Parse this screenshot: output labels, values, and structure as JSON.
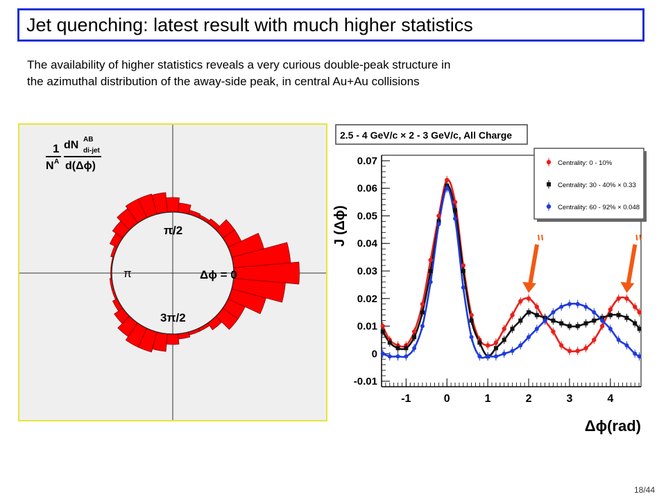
{
  "slide": {
    "title": "Jet quenching: latest result with much higher statistics",
    "intro_line1": "The availability of higher statistics reveals a very curious double-peak structure in",
    "intro_line2": "the azimuthal distribution of the away-side peak, in central Au+Au collisions",
    "page_number": "18/44"
  },
  "polar": {
    "axis_label_num1": "1",
    "axis_label_num2": "dN",
    "axis_label_sup": "AB",
    "axis_label_sub": "di-jet",
    "axis_label_den1": "N",
    "axis_label_den1_sup": "A",
    "axis_label_den2": "d(Δϕ)",
    "label_pi_half": "π/2",
    "label_pi": "π",
    "label_three_pi_half": "3π/2",
    "label_zero": "Δϕ = 0",
    "colors": {
      "bar": "#ff0000",
      "background": "#efefef",
      "frame": "#e7e43c"
    }
  },
  "chart_data": {
    "type": "scatter",
    "title": "2.5 - 4 GeV/c × 2 - 3 GeV/c,  All Charge",
    "xlabel": "Δϕ(rad)",
    "ylabel": "J (Δϕ)",
    "xlim": [
      -1.6,
      4.75
    ],
    "ylim": [
      -0.012,
      0.072
    ],
    "x_ticks": [
      "-1",
      "0",
      "1",
      "2",
      "3",
      "4"
    ],
    "y_ticks": [
      "-0.01",
      "0",
      "0.01",
      "0.02",
      "0.03",
      "0.04",
      "0.05",
      "0.06",
      "0.07"
    ],
    "legend_position": "top-right",
    "series": [
      {
        "name": "Centrality:  0 - 10%",
        "color": "#e8211c",
        "marker": "circle",
        "x": [
          -1.57,
          -1.4,
          -1.2,
          -1.0,
          -0.8,
          -0.6,
          -0.4,
          -0.2,
          0.0,
          0.2,
          0.4,
          0.6,
          0.8,
          1.0,
          1.2,
          1.4,
          1.6,
          1.8,
          2.0,
          2.2,
          2.4,
          2.6,
          2.8,
          3.0,
          3.2,
          3.4,
          3.6,
          3.8,
          4.0,
          4.2,
          4.4,
          4.6,
          4.71
        ],
        "y": [
          0.01,
          0.005,
          0.003,
          0.003,
          0.008,
          0.018,
          0.034,
          0.05,
          0.063,
          0.055,
          0.032,
          0.014,
          0.005,
          0.003,
          0.004,
          0.009,
          0.014,
          0.019,
          0.02,
          0.017,
          0.012,
          0.008,
          0.003,
          0.001,
          0.001,
          0.002,
          0.005,
          0.01,
          0.016,
          0.02,
          0.02,
          0.017,
          0.015
        ]
      },
      {
        "name": "Centrality: 30 - 40% × 0.33",
        "color": "#111111",
        "marker": "square",
        "x": [
          -1.57,
          -1.4,
          -1.2,
          -1.0,
          -0.8,
          -0.6,
          -0.4,
          -0.2,
          0.0,
          0.2,
          0.4,
          0.6,
          0.8,
          1.0,
          1.2,
          1.4,
          1.6,
          1.8,
          2.0,
          2.2,
          2.4,
          2.6,
          2.8,
          3.0,
          3.2,
          3.4,
          3.6,
          3.8,
          4.0,
          4.2,
          4.4,
          4.6,
          4.71
        ],
        "y": [
          0.008,
          0.004,
          0.002,
          0.002,
          0.006,
          0.015,
          0.03,
          0.048,
          0.061,
          0.052,
          0.03,
          0.012,
          0.004,
          -0.001,
          0.002,
          0.005,
          0.009,
          0.012,
          0.015,
          0.014,
          0.013,
          0.012,
          0.011,
          0.01,
          0.01,
          0.011,
          0.012,
          0.013,
          0.014,
          0.014,
          0.013,
          0.011,
          0.009
        ]
      },
      {
        "name": "Centrality: 60 - 92% × 0.048",
        "color": "#1f3bdc",
        "marker": "diamond",
        "x": [
          -1.57,
          -1.4,
          -1.2,
          -1.0,
          -0.8,
          -0.6,
          -0.4,
          -0.2,
          0.0,
          0.2,
          0.4,
          0.6,
          0.8,
          1.0,
          1.2,
          1.4,
          1.6,
          1.8,
          2.0,
          2.2,
          2.4,
          2.6,
          2.8,
          3.0,
          3.2,
          3.4,
          3.6,
          3.8,
          4.0,
          4.2,
          4.4,
          4.6,
          4.71
        ],
        "y": [
          0.0,
          -0.001,
          -0.001,
          -0.001,
          0.002,
          0.01,
          0.026,
          0.047,
          0.06,
          0.049,
          0.024,
          0.006,
          -0.001,
          -0.001,
          -0.001,
          0.0,
          0.001,
          0.003,
          0.006,
          0.009,
          0.012,
          0.015,
          0.017,
          0.018,
          0.018,
          0.017,
          0.015,
          0.012,
          0.009,
          0.005,
          0.003,
          0.0,
          -0.001
        ]
      }
    ]
  }
}
